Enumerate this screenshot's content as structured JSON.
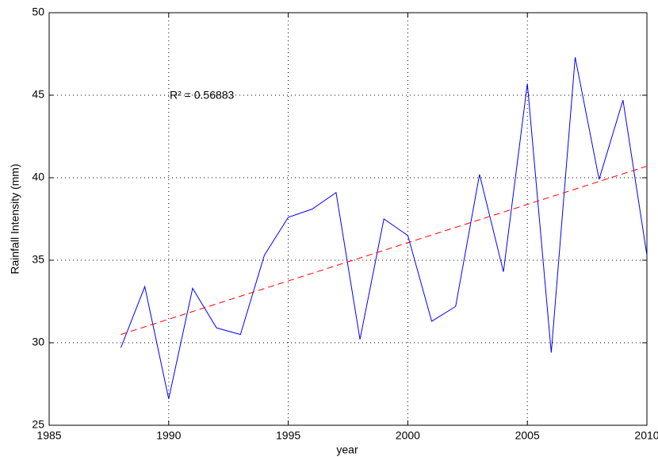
{
  "chart_data": {
    "type": "line",
    "xlabel": "year",
    "ylabel": "Rainfall Intensity (mm)",
    "annotations": [
      "R² = 0.56883"
    ],
    "x": [
      1988,
      1989,
      1990,
      1991,
      1992,
      1993,
      1994,
      1995,
      1996,
      1997,
      1998,
      1999,
      2000,
      2001,
      2002,
      2003,
      2004,
      2005,
      2006,
      2007,
      2008,
      2009,
      2010
    ],
    "series": [
      {
        "color": "#0000ff",
        "values": [
          29.7,
          33.4,
          26.6,
          33.3,
          30.9,
          30.5,
          35.3,
          37.6,
          38.1,
          39.1,
          30.2,
          37.5,
          36.5,
          31.3,
          32.2,
          40.2,
          34.3,
          45.7,
          29.4,
          47.3,
          39.9,
          44.7,
          35.3
        ]
      }
    ],
    "trend": {
      "color": "#ff0000",
      "dashed": true,
      "x": [
        1988,
        2010
      ],
      "values": [
        30.5,
        40.7
      ]
    },
    "xlim": [
      1985,
      2010
    ],
    "xticks": [
      1985,
      1990,
      1995,
      2000,
      2005,
      2010
    ],
    "ylim": [
      25,
      50
    ],
    "yticks": [
      25,
      30,
      35,
      40,
      45,
      50
    ],
    "grid": true
  }
}
